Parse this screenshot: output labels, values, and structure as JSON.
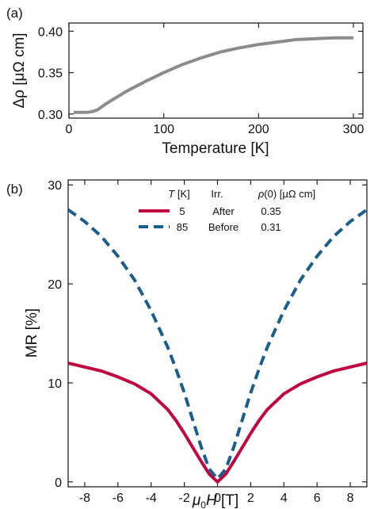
{
  "chart_data": [
    {
      "panel_label": "(a)",
      "type": "line",
      "xlabel": "Temperature [K]",
      "ylabel": "Δρ [μΩ cm]",
      "xlim": [
        0,
        310
      ],
      "ylim": [
        0.295,
        0.41
      ],
      "xticks": [
        0,
        100,
        200,
        300
      ],
      "xtick_labels": [
        "0",
        "100",
        "200",
        "300"
      ],
      "yticks": [
        0.3,
        0.35,
        0.4
      ],
      "ytick_labels": [
        "0.30",
        "0.35",
        "0.40"
      ],
      "grid": false,
      "series": [
        {
          "color": "#8c8c8c",
          "x": [
            5,
            10,
            15,
            20,
            25,
            30,
            35,
            40,
            50,
            60,
            70,
            80,
            100,
            120,
            140,
            160,
            180,
            200,
            220,
            240,
            260,
            280,
            300
          ],
          "y": [
            0.302,
            0.302,
            0.302,
            0.302,
            0.303,
            0.305,
            0.309,
            0.313,
            0.32,
            0.327,
            0.333,
            0.339,
            0.35,
            0.36,
            0.368,
            0.375,
            0.38,
            0.384,
            0.387,
            0.39,
            0.391,
            0.392,
            0.392
          ]
        }
      ]
    },
    {
      "panel_label": "(b)",
      "type": "line",
      "xlabel_main": "μ",
      "xlabel_sub": "0",
      "xlabel_rest": "H",
      "xlabel_unit": " [T]",
      "ylabel": "MR [%]",
      "xlim": [
        -9,
        9
      ],
      "ylim": [
        -0.5,
        30.5
      ],
      "xticks": [
        -8,
        -6,
        -4,
        -2,
        0,
        2,
        4,
        6,
        8
      ],
      "xtick_labels": [
        "-8",
        "-6",
        "-4",
        "-2",
        "0",
        "2",
        "4",
        "6",
        "8"
      ],
      "yticks": [
        0,
        10,
        20,
        30
      ],
      "ytick_labels": [
        "0",
        "10",
        "20",
        "30"
      ],
      "grid": false,
      "legend_placement": "top-center",
      "legend_header": {
        "t_italic": "T",
        "t_unit": " [K]",
        "irr": "Irr.",
        "rho_italic": "ρ",
        "rho_rest": "(0) [μΩ cm]"
      },
      "series": [
        {
          "T": "5",
          "irr": "After",
          "rho0": "0.35",
          "color": "#c0063f",
          "dash": "solid",
          "x": [
            -9,
            -8,
            -7,
            -6,
            -5,
            -4,
            -3,
            -2.5,
            -2,
            -1.5,
            -1,
            -0.5,
            0,
            0.5,
            1,
            1.5,
            2,
            2.5,
            3,
            4,
            5,
            6,
            7,
            8,
            9
          ],
          "y": [
            12,
            11.6,
            11.2,
            10.6,
            9.9,
            8.9,
            7.3,
            6.2,
            4.9,
            3.5,
            2.1,
            0.8,
            0,
            0.8,
            2.1,
            3.5,
            4.9,
            6.2,
            7.3,
            8.9,
            9.9,
            10.6,
            11.2,
            11.6,
            12
          ]
        },
        {
          "T": "85",
          "irr": "Before",
          "rho0": "0.31",
          "color": "#1b5e8a",
          "dash": "dashed",
          "x": [
            -9,
            -8,
            -7,
            -6,
            -5,
            -4,
            -3,
            -2.5,
            -2,
            -1.5,
            -1,
            -0.5,
            0,
            0.5,
            1,
            1.5,
            2,
            2.5,
            3,
            4,
            5,
            6,
            7,
            8,
            9
          ],
          "y": [
            27.5,
            26.3,
            24.8,
            22.8,
            20.4,
            17.3,
            13.6,
            11.4,
            9.0,
            6.3,
            3.6,
            1.3,
            0.3,
            1.3,
            3.6,
            6.3,
            9.0,
            11.4,
            13.6,
            17.3,
            20.4,
            22.8,
            24.8,
            26.3,
            27.5
          ]
        }
      ]
    }
  ]
}
